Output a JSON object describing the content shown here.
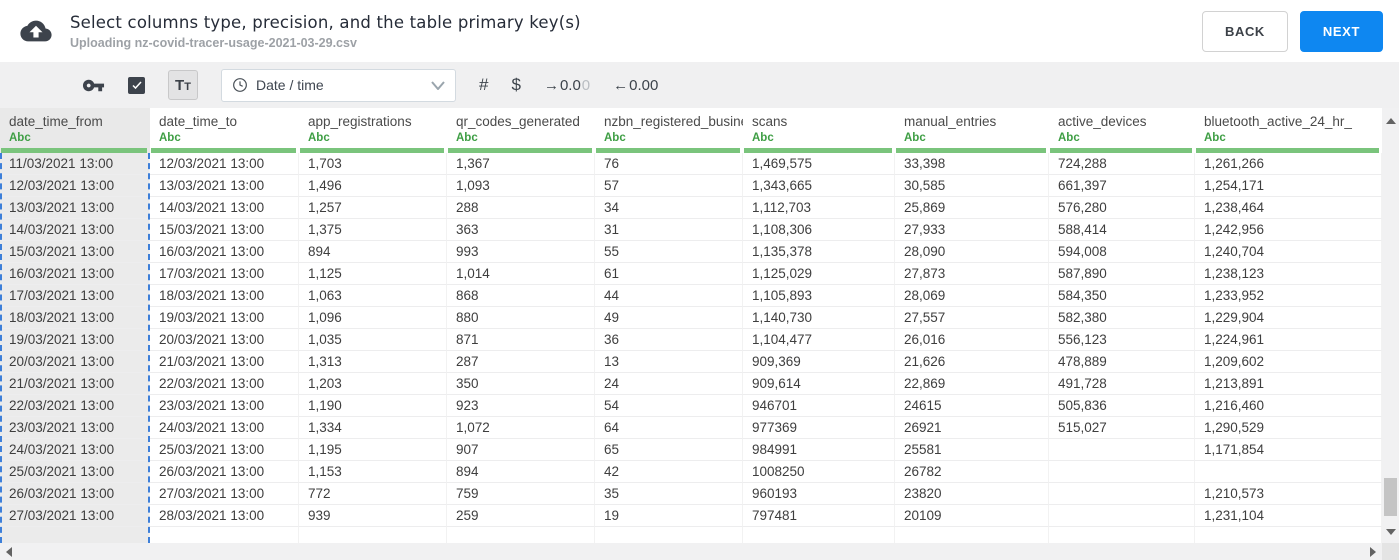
{
  "colors": {
    "accent_blue": "#0e87f1",
    "green_bar": "#7ac47c",
    "type_green": "#3e9e44",
    "selection_blue": "#3d7fd9",
    "icon_dark": "#3d434c"
  },
  "header": {
    "title": "Select columns type, precision, and the table primary key(s)",
    "subtitle": "Uploading nz-covid-tracer-usage-2021-03-29.csv",
    "back_label": "BACK",
    "next_label": "NEXT"
  },
  "toolbar": {
    "text_type_label": "Tt",
    "type_dropdown_value": "Date / time",
    "number_symbol": "#",
    "currency_symbol": "$",
    "precision_add_arrow": "→",
    "precision_add_value": "0.0",
    "precision_add_faded": "0",
    "precision_remove_arrow": "←",
    "precision_remove_value": "0.00"
  },
  "table": {
    "type_badge": "Abc",
    "selected_column_index": 0,
    "columns": [
      "date_time_from",
      "date_time_to",
      "app_registrations",
      "qr_codes_generated",
      "nzbn_registered_busine",
      "scans",
      "manual_entries",
      "active_devices",
      "bluetooth_active_24_hr_"
    ],
    "rows": [
      [
        "11/03/2021 13:00",
        "12/03/2021 13:00",
        "1,703",
        "1,367",
        "76",
        "1,469,575",
        "33,398",
        "724,288",
        "1,261,266"
      ],
      [
        "12/03/2021 13:00",
        "13/03/2021 13:00",
        "1,496",
        "1,093",
        "57",
        "1,343,665",
        "30,585",
        "661,397",
        "1,254,171"
      ],
      [
        "13/03/2021 13:00",
        "14/03/2021 13:00",
        "1,257",
        "288",
        "34",
        "1,112,703",
        "25,869",
        "576,280",
        "1,238,464"
      ],
      [
        "14/03/2021 13:00",
        "15/03/2021 13:00",
        "1,375",
        "363",
        "31",
        "1,108,306",
        "27,933",
        "588,414",
        "1,242,956"
      ],
      [
        "15/03/2021 13:00",
        "16/03/2021 13:00",
        "894",
        "993",
        "55",
        "1,135,378",
        "28,090",
        "594,008",
        "1,240,704"
      ],
      [
        "16/03/2021 13:00",
        "17/03/2021 13:00",
        "1,125",
        "1,014",
        "61",
        "1,125,029",
        "27,873",
        "587,890",
        "1,238,123"
      ],
      [
        "17/03/2021 13:00",
        "18/03/2021 13:00",
        "1,063",
        "868",
        "44",
        "1,105,893",
        "28,069",
        "584,350",
        "1,233,952"
      ],
      [
        "18/03/2021 13:00",
        "19/03/2021 13:00",
        "1,096",
        "880",
        "49",
        "1,140,730",
        "27,557",
        "582,380",
        "1,229,904"
      ],
      [
        "19/03/2021 13:00",
        "20/03/2021 13:00",
        "1,035",
        "871",
        "36",
        "1,104,477",
        "26,016",
        "556,123",
        "1,224,961"
      ],
      [
        "20/03/2021 13:00",
        "21/03/2021 13:00",
        "1,313",
        "287",
        "13",
        "909,369",
        "21,626",
        "478,889",
        "1,209,602"
      ],
      [
        "21/03/2021 13:00",
        "22/03/2021 13:00",
        "1,203",
        "350",
        "24",
        "909,614",
        "22,869",
        "491,728",
        "1,213,891"
      ],
      [
        "22/03/2021 13:00",
        "23/03/2021 13:00",
        "1,190",
        "923",
        "54",
        "946701",
        "24615",
        "505,836",
        "1,216,460"
      ],
      [
        "23/03/2021 13:00",
        "24/03/2021 13:00",
        "1,334",
        "1,072",
        "64",
        "977369",
        "26921",
        "515,027",
        "1,290,529"
      ],
      [
        "24/03/2021 13:00",
        "25/03/2021 13:00",
        "1,195",
        "907",
        "65",
        "984991",
        "25581",
        "",
        "1,171,854"
      ],
      [
        "25/03/2021 13:00",
        "26/03/2021 13:00",
        "1,153",
        "894",
        "42",
        "1008250",
        "26782",
        "",
        ""
      ],
      [
        "26/03/2021 13:00",
        "27/03/2021 13:00",
        "772",
        "759",
        "35",
        "960193",
        "23820",
        "",
        "1,210,573"
      ],
      [
        "27/03/2021 13:00",
        "28/03/2021 13:00",
        "939",
        "259",
        "19",
        "797481",
        "20109",
        "",
        "1,231,104"
      ]
    ]
  }
}
